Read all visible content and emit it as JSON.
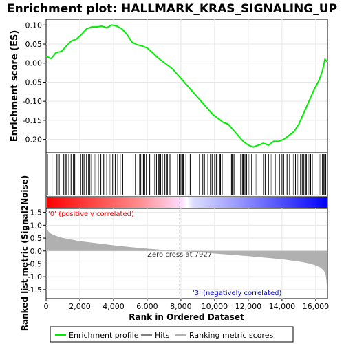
{
  "title": "Enrichment plot: HALLMARK_KRAS_SIGNALING_UP",
  "colors": {
    "es_line": "#00ee00",
    "hits": "#000000",
    "metric_fill": "#b0b0b0",
    "pos_band": "#ff0000",
    "neg_band": "#0000ff",
    "zero_line": "#b0b0b0",
    "pos_label": "#ff0000",
    "neg_label": "#0000cc"
  },
  "legend": {
    "es": "Enrichment profile",
    "hits": "Hits",
    "metric": "Ranking metric scores"
  },
  "chart_data": [
    {
      "type": "line",
      "name": "enrichment-profile",
      "ylabel": "Enrichment score (ES)",
      "ylim": [
        -0.235,
        0.115
      ],
      "xlim": [
        0,
        16700
      ],
      "yticks": [
        0.1,
        0.05,
        0.0,
        -0.05,
        -0.1,
        -0.15,
        -0.2
      ],
      "ytick_labels": [
        "0.10",
        "0.05",
        "0.00",
        "-0.05",
        "-0.10",
        "-0.15",
        "-0.20"
      ],
      "grid": true,
      "x": [
        0,
        300,
        600,
        900,
        1200,
        1500,
        1800,
        2100,
        2400,
        2700,
        3000,
        3300,
        3600,
        3900,
        4200,
        4500,
        4800,
        5100,
        5400,
        5700,
        6000,
        6300,
        6600,
        6900,
        7200,
        7500,
        7800,
        8100,
        8400,
        8700,
        9000,
        9300,
        9600,
        9900,
        10200,
        10500,
        10800,
        11100,
        11400,
        11700,
        12000,
        12300,
        12600,
        12900,
        13200,
        13500,
        13800,
        14100,
        14400,
        14700,
        15000,
        15300,
        15600,
        15900,
        16200,
        16400,
        16550,
        16700
      ],
      "y": [
        0.018,
        0.012,
        0.028,
        0.03,
        0.045,
        0.058,
        0.063,
        0.075,
        0.09,
        0.095,
        0.095,
        0.097,
        0.093,
        0.1,
        0.097,
        0.09,
        0.075,
        0.055,
        0.048,
        0.045,
        0.04,
        0.028,
        0.015,
        0.005,
        -0.005,
        -0.015,
        -0.03,
        -0.045,
        -0.06,
        -0.075,
        -0.09,
        -0.105,
        -0.12,
        -0.135,
        -0.145,
        -0.155,
        -0.16,
        -0.175,
        -0.19,
        -0.205,
        -0.215,
        -0.22,
        -0.215,
        -0.21,
        -0.215,
        -0.205,
        -0.205,
        -0.2,
        -0.19,
        -0.18,
        -0.16,
        -0.13,
        -0.1,
        -0.07,
        -0.045,
        -0.02,
        0.01,
        0.003
      ]
    },
    {
      "type": "scatter",
      "name": "hits",
      "x": [
        80,
        350,
        620,
        700,
        780,
        1050,
        1150,
        1220,
        1350,
        1480,
        1620,
        1700,
        1900,
        2050,
        2150,
        2250,
        2400,
        2520,
        2600,
        2700,
        2850,
        2950,
        3100,
        3250,
        3400,
        3480,
        3600,
        3750,
        3850,
        3950,
        4100,
        4250,
        4400,
        4550,
        5300,
        5450,
        5550,
        5620,
        5700,
        5780,
        5850,
        5950,
        6150,
        6350,
        6450,
        6550,
        6650,
        6700,
        6750,
        6800,
        6900,
        7050,
        7150,
        7200,
        7350,
        7800,
        7900,
        8000,
        8100,
        8150,
        8300,
        8550,
        9100,
        9300,
        9400,
        9600,
        9750,
        9850,
        9900,
        10000,
        10100,
        10150,
        10300,
        10350,
        10450,
        11000,
        11050,
        11150,
        11550,
        11650,
        11700,
        11800,
        11900,
        12000,
        12100,
        12200,
        12400,
        12500,
        12900,
        13000,
        13200,
        13300,
        13400,
        13600,
        13700,
        13850,
        14000,
        14100,
        14300,
        14450,
        14600,
        14700,
        14800,
        14900,
        15000,
        15100,
        15200,
        15300,
        15400,
        15450,
        15550,
        15650,
        15700,
        15800,
        16200,
        16300,
        16400,
        16450,
        16500,
        16600
      ]
    },
    {
      "type": "area",
      "name": "ranked-list-metric",
      "ylabel": "Ranked list metric (Signal2Noise)",
      "xlabel": "Rank in Ordered Dataset",
      "xlim": [
        0,
        16700
      ],
      "ylim": [
        -1.85,
        1.65
      ],
      "xticks": [
        0,
        2000,
        4000,
        6000,
        8000,
        10000,
        12000,
        14000,
        16000
      ],
      "xtick_labels": [
        "0",
        "2,000",
        "4,000",
        "6,000",
        "8,000",
        "10,000",
        "12,000",
        "14,000",
        "16,000"
      ],
      "yticks": [
        1.5,
        1.0,
        0.5,
        0.0,
        -0.5,
        -1.0,
        -1.5
      ],
      "ytick_labels": [
        "1.5",
        "1.0",
        "0.5",
        "0.0",
        "-0.5",
        "-1.0",
        "-1.5"
      ],
      "x": [
        0,
        50,
        150,
        300,
        600,
        1000,
        2000,
        3000,
        4000,
        5000,
        6000,
        7000,
        7927,
        9000,
        10000,
        11000,
        12000,
        13000,
        14000,
        15000,
        15600,
        16000,
        16300,
        16500,
        16600,
        16650,
        16700
      ],
      "y": [
        0.95,
        0.85,
        0.75,
        0.67,
        0.58,
        0.5,
        0.38,
        0.3,
        0.22,
        0.15,
        0.09,
        0.04,
        0.0,
        -0.05,
        -0.1,
        -0.15,
        -0.2,
        -0.26,
        -0.32,
        -0.41,
        -0.48,
        -0.56,
        -0.65,
        -0.78,
        -0.95,
        -1.25,
        -1.75
      ],
      "zero_cross": 7927,
      "annotations": {
        "zero_cross": "Zero cross at 7927",
        "positive": "'0' (positively correlated)",
        "negative": "'3' (negatively correlated)"
      }
    }
  ]
}
